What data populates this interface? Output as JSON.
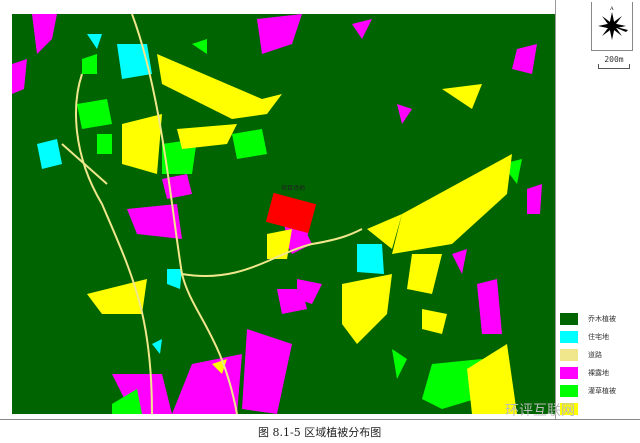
{
  "figure_caption": "图 8.1-5  区域植被分布图",
  "site_label": "项目场地",
  "scale_label": "200m",
  "compass_icon": "north-arrow-rose-icon",
  "watermark": "环评互联网",
  "legend": [
    {
      "label": "乔木植被",
      "color": "#006400"
    },
    {
      "label": "住宅地",
      "color": "#00ffff"
    },
    {
      "label": "道路",
      "color": "#f0e68c"
    },
    {
      "label": "裸露地",
      "color": "#ff00ff"
    },
    {
      "label": "灌草植被",
      "color": "#00ff00"
    },
    {
      "label": "",
      "color": "#ffff00"
    }
  ],
  "site_color": "#ff0000"
}
